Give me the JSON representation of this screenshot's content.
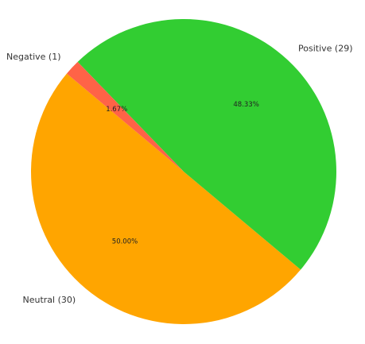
{
  "chart_data": {
    "type": "pie",
    "slices": [
      {
        "label": "Neutral (30)",
        "count": 30,
        "percent": "50.00%",
        "color": "#ffa500"
      },
      {
        "label": "Positive (29)",
        "count": 29,
        "percent": "48.33%",
        "color": "#32cd32"
      },
      {
        "label": "Negative (1)",
        "count": 1,
        "percent": "1.67%",
        "color": "#ff6347"
      }
    ],
    "start_angle_deg": 140,
    "direction": "counterclockwise",
    "legend": "none"
  }
}
